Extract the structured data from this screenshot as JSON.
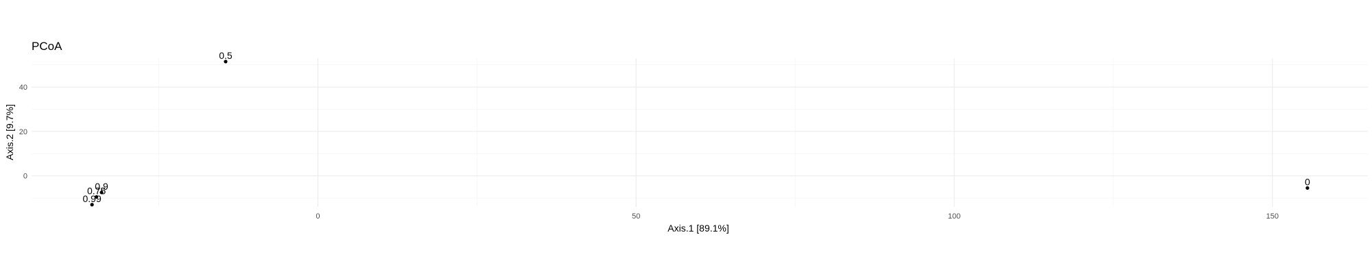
{
  "chart_data": {
    "type": "scatter",
    "title": "PCoA",
    "xlabel": "Axis.1   [89.1%]",
    "ylabel": "Axis.2   [9.7%]",
    "xlim": [
      -45,
      165
    ],
    "ylim": [
      -14,
      53
    ],
    "x_ticks": [
      0,
      50,
      100,
      150
    ],
    "y_ticks": [
      0,
      20,
      40
    ],
    "grid": true,
    "legend": "none",
    "points": [
      {
        "label": "0.5",
        "x": -14.5,
        "y": 51.5
      },
      {
        "label": "0",
        "x": 155.5,
        "y": -5.5
      },
      {
        "label": "0.9",
        "x": -34,
        "y": -7.5
      },
      {
        "label": "0.75",
        "x": -34.8,
        "y": -9.5
      },
      {
        "label": "0.99",
        "x": -35.5,
        "y": -13
      }
    ]
  }
}
